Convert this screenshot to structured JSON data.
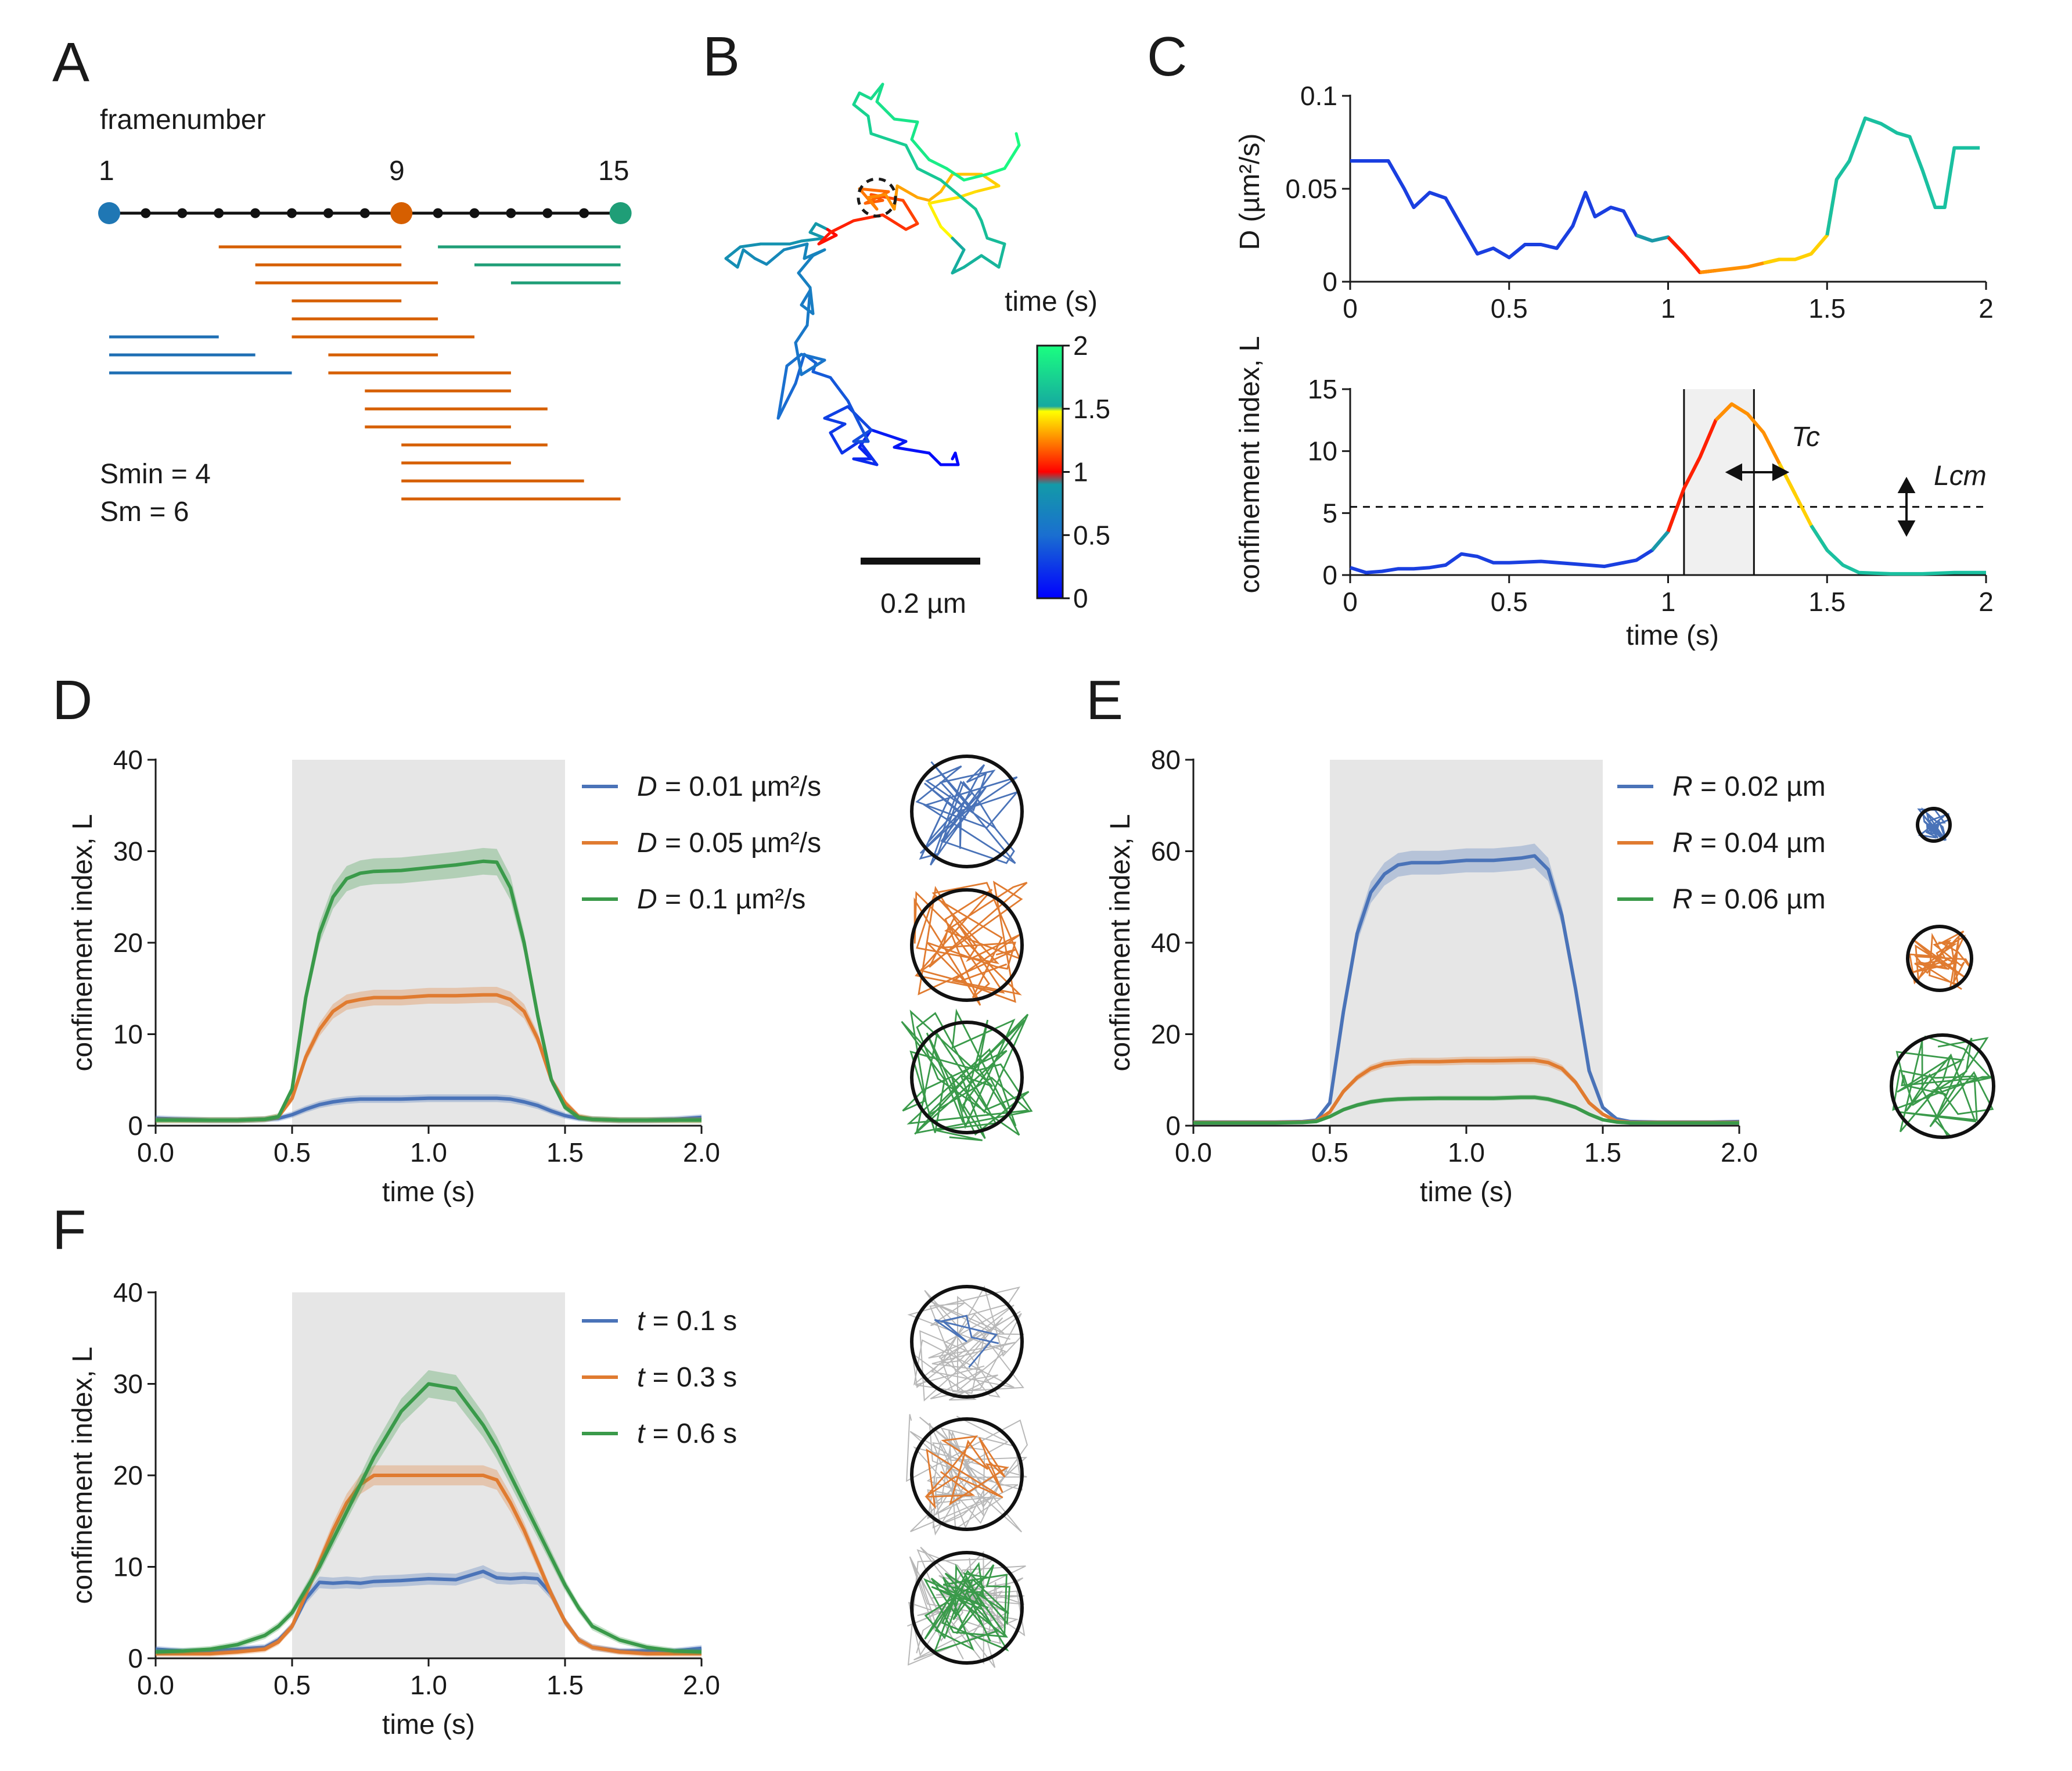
{
  "panels": {
    "A": {
      "letter": "A",
      "title": "framenumber",
      "frame_labels": [
        "1",
        "9",
        "15"
      ],
      "frames": 15,
      "highlight_frames": [
        1,
        9,
        15
      ],
      "frame_colors": {
        "1": "#1f77b4",
        "9": "#d65f00",
        "15": "#1f9e77"
      },
      "windows": {
        "orange": [
          [
            4,
            9
          ],
          [
            5,
            9
          ],
          [
            5,
            10
          ],
          [
            6,
            9
          ],
          [
            6,
            10
          ],
          [
            6,
            11
          ],
          [
            7,
            10
          ],
          [
            7,
            12
          ],
          [
            8,
            12
          ],
          [
            8,
            13
          ],
          [
            8,
            12
          ],
          [
            9,
            13
          ],
          [
            9,
            12
          ],
          [
            9,
            14
          ],
          [
            9,
            15
          ]
        ],
        "teal": [
          [
            10,
            15
          ],
          [
            11,
            15
          ],
          [
            12,
            15
          ]
        ],
        "blue": [
          [
            1,
            4
          ],
          [
            1,
            5
          ],
          [
            1,
            6
          ]
        ]
      },
      "smin_text": "Smin = 4",
      "sm_text": "Sm = 6"
    },
    "B": {
      "letter": "B",
      "colorbar_title": "time (s)",
      "colorbar_ticks": [
        "0",
        "0.5",
        "1",
        "1.5",
        "2"
      ],
      "scalebar_label": "0.2 µm"
    },
    "C": {
      "letter": "C",
      "top_ylabel": "D (µm²/s)",
      "top_yticks": [
        "0",
        "0.05",
        "0.1"
      ],
      "bottom_ylabel": "confinement index, L",
      "bottom_yticks": [
        "0",
        "5",
        "10",
        "15"
      ],
      "xticks": [
        "0",
        "0.5",
        "1",
        "1.5",
        "2"
      ],
      "xlabel": "time (s)",
      "tc_label": "Tc",
      "lcm_label": "Lcm"
    },
    "D": {
      "letter": "D"
    },
    "E": {
      "letter": "E"
    },
    "F": {
      "letter": "F"
    }
  },
  "chart_data": [
    {
      "panel": "C-top",
      "type": "line",
      "xlabel": "",
      "ylabel": "D (µm²/s)",
      "xlim": [
        0,
        2
      ],
      "ylim": [
        0,
        0.1
      ],
      "x": [
        0,
        0.05,
        0.12,
        0.17,
        0.2,
        0.25,
        0.3,
        0.35,
        0.4,
        0.45,
        0.5,
        0.55,
        0.6,
        0.65,
        0.7,
        0.74,
        0.77,
        0.82,
        0.86,
        0.9,
        0.95,
        1.0,
        1.05,
        1.1,
        1.15,
        1.2,
        1.25,
        1.3,
        1.35,
        1.4,
        1.45,
        1.5,
        1.53,
        1.57,
        1.62,
        1.67,
        1.72,
        1.76,
        1.8,
        1.84,
        1.87,
        1.9,
        1.95,
        1.98
      ],
      "y": [
        0.065,
        0.065,
        0.065,
        0.05,
        0.04,
        0.048,
        0.045,
        0.03,
        0.015,
        0.018,
        0.013,
        0.02,
        0.02,
        0.018,
        0.03,
        0.048,
        0.035,
        0.04,
        0.038,
        0.025,
        0.022,
        0.024,
        0.015,
        0.005,
        0.006,
        0.007,
        0.008,
        0.01,
        0.012,
        0.012,
        0.015,
        0.025,
        0.055,
        0.065,
        0.088,
        0.085,
        0.08,
        0.078,
        0.06,
        0.04,
        0.04,
        0.072,
        0.072,
        0.072
      ]
    },
    {
      "panel": "C-bottom",
      "type": "line",
      "xlabel": "time (s)",
      "ylabel": "confinement index, L",
      "xlim": [
        0,
        2
      ],
      "ylim": [
        0,
        15
      ],
      "x": [
        0,
        0.05,
        0.1,
        0.15,
        0.2,
        0.25,
        0.3,
        0.35,
        0.4,
        0.45,
        0.5,
        0.6,
        0.7,
        0.8,
        0.9,
        0.95,
        1.0,
        1.05,
        1.1,
        1.15,
        1.2,
        1.25,
        1.3,
        1.35,
        1.4,
        1.45,
        1.5,
        1.55,
        1.6,
        1.7,
        1.8,
        1.9,
        2.0
      ],
      "y": [
        0.6,
        0.2,
        0.3,
        0.5,
        0.5,
        0.6,
        0.8,
        1.7,
        1.5,
        1.0,
        1.0,
        1.1,
        0.9,
        0.7,
        1.2,
        2.0,
        3.5,
        7.0,
        9.5,
        12.5,
        13.8,
        13.0,
        11.5,
        9.0,
        6.5,
        4.0,
        2.0,
        0.8,
        0.2,
        0.1,
        0.1,
        0.2,
        0.2
      ],
      "confined_interval": [
        1.05,
        1.27
      ],
      "threshold": 5.5
    },
    {
      "panel": "D",
      "type": "line",
      "xlabel": "time (s)",
      "ylabel": "confinement index, L",
      "xlim": [
        0,
        2
      ],
      "ylim": [
        0,
        40
      ],
      "xticks": [
        "0.0",
        "0.5",
        "1.0",
        "1.5",
        "2.0"
      ],
      "yticks": [
        "0",
        "10",
        "20",
        "30",
        "40"
      ],
      "shaded_interval": [
        0.5,
        1.5
      ],
      "x": [
        0,
        0.1,
        0.2,
        0.3,
        0.4,
        0.45,
        0.5,
        0.55,
        0.6,
        0.65,
        0.7,
        0.75,
        0.8,
        0.9,
        1.0,
        1.1,
        1.2,
        1.25,
        1.3,
        1.35,
        1.4,
        1.45,
        1.5,
        1.55,
        1.6,
        1.7,
        1.8,
        1.9,
        2.0
      ],
      "series": [
        {
          "name": "D = 0.01 µm²/s",
          "label_var": "D",
          "label_rest": " = 0.01 µm²/s",
          "color": "#4a73b8",
          "values": [
            0.8,
            0.7,
            0.6,
            0.6,
            0.7,
            0.8,
            1.2,
            1.8,
            2.3,
            2.6,
            2.8,
            2.9,
            2.9,
            2.9,
            3.0,
            3.0,
            3.0,
            3.0,
            2.9,
            2.6,
            2.2,
            1.6,
            1.1,
            0.8,
            0.7,
            0.6,
            0.6,
            0.7,
            0.9
          ]
        },
        {
          "name": "D = 0.05 µm²/s",
          "label_var": "D",
          "label_rest": " = 0.05 µm²/s",
          "color": "#e07b30",
          "values": [
            0.6,
            0.6,
            0.6,
            0.6,
            0.7,
            1.0,
            3.0,
            7.5,
            10.5,
            12.5,
            13.5,
            13.8,
            14.0,
            14.0,
            14.2,
            14.2,
            14.3,
            14.3,
            13.8,
            12.5,
            9.5,
            5.0,
            2.5,
            1.0,
            0.7,
            0.6,
            0.6,
            0.6,
            0.6
          ]
        },
        {
          "name": "D = 0.1 µm²/s",
          "label_var": "D",
          "label_rest": " = 0.1 µm²/s",
          "color": "#3a9a4a",
          "values": [
            0.6,
            0.6,
            0.6,
            0.6,
            0.7,
            1.0,
            4.0,
            14.0,
            21.0,
            25.0,
            27.0,
            27.6,
            27.8,
            27.9,
            28.2,
            28.5,
            28.9,
            28.8,
            26.0,
            20.0,
            12.0,
            5.0,
            2.0,
            0.9,
            0.7,
            0.6,
            0.6,
            0.6,
            0.6
          ]
        }
      ]
    },
    {
      "panel": "E",
      "type": "line",
      "xlabel": "time (s)",
      "ylabel": "confinement index, L",
      "xlim": [
        0,
        2
      ],
      "ylim": [
        0,
        80
      ],
      "xticks": [
        "0.0",
        "0.5",
        "1.0",
        "1.5",
        "2.0"
      ],
      "yticks": [
        "0",
        "20",
        "40",
        "60",
        "80"
      ],
      "shaded_interval": [
        0.5,
        1.5
      ],
      "x": [
        0,
        0.1,
        0.2,
        0.3,
        0.4,
        0.45,
        0.5,
        0.55,
        0.6,
        0.65,
        0.7,
        0.75,
        0.8,
        0.9,
        1.0,
        1.1,
        1.2,
        1.25,
        1.3,
        1.35,
        1.4,
        1.45,
        1.5,
        1.55,
        1.6,
        1.7,
        1.8,
        1.9,
        2.0
      ],
      "series": [
        {
          "name": "R = 0.02 µm",
          "label_var": "R",
          "label_rest": " = 0.02 µm",
          "color": "#4a73b8",
          "values": [
            0.8,
            0.8,
            0.8,
            0.8,
            0.9,
            1.2,
            5.0,
            25.0,
            42.0,
            51.0,
            55.0,
            57.0,
            57.5,
            57.5,
            58.0,
            58.0,
            58.5,
            59.0,
            56.0,
            46.0,
            30.0,
            12.0,
            4.0,
            1.5,
            0.9,
            0.8,
            0.8,
            0.8,
            0.9
          ]
        },
        {
          "name": "R = 0.04 µm",
          "label_var": "R",
          "label_rest": " = 0.04 µm",
          "color": "#e07b30",
          "values": [
            0.7,
            0.7,
            0.7,
            0.7,
            0.8,
            1.0,
            3.0,
            7.5,
            10.5,
            12.5,
            13.5,
            13.8,
            14.0,
            14.0,
            14.2,
            14.2,
            14.3,
            14.3,
            13.8,
            12.5,
            9.5,
            5.0,
            2.5,
            1.0,
            0.7,
            0.7,
            0.7,
            0.7,
            0.7
          ]
        },
        {
          "name": "R = 0.06 µm",
          "label_var": "R",
          "label_rest": " = 0.06 µm",
          "color": "#3a9a4a",
          "values": [
            0.6,
            0.6,
            0.6,
            0.6,
            0.7,
            0.9,
            2.0,
            3.5,
            4.5,
            5.2,
            5.6,
            5.8,
            5.9,
            6.0,
            6.0,
            6.0,
            6.2,
            6.2,
            5.8,
            5.0,
            4.0,
            2.5,
            1.3,
            0.8,
            0.6,
            0.6,
            0.6,
            0.6,
            0.6
          ]
        }
      ]
    },
    {
      "panel": "F",
      "type": "line",
      "xlabel": "time (s)",
      "ylabel": "confinement index, L",
      "xlim": [
        0,
        2
      ],
      "ylim": [
        0,
        40
      ],
      "xticks": [
        "0.0",
        "0.5",
        "1.0",
        "1.5",
        "2.0"
      ],
      "yticks": [
        "0",
        "10",
        "20",
        "30",
        "40"
      ],
      "shaded_interval": [
        0.5,
        1.5
      ],
      "x": [
        0,
        0.1,
        0.2,
        0.3,
        0.4,
        0.45,
        0.5,
        0.55,
        0.6,
        0.65,
        0.7,
        0.75,
        0.8,
        0.9,
        1.0,
        1.1,
        1.2,
        1.25,
        1.3,
        1.35,
        1.4,
        1.45,
        1.5,
        1.55,
        1.6,
        1.7,
        1.8,
        1.9,
        2.0
      ],
      "series": [
        {
          "name": "t = 0.1 s",
          "label_var": "t",
          "label_rest": " = 0.1 s",
          "color": "#4a73b8",
          "values": [
            1.0,
            0.8,
            0.8,
            1.0,
            1.2,
            2.0,
            3.5,
            6.5,
            8.3,
            8.2,
            8.3,
            8.2,
            8.4,
            8.5,
            8.7,
            8.6,
            9.5,
            8.8,
            8.7,
            8.8,
            8.7,
            7.0,
            4.0,
            2.0,
            1.2,
            0.8,
            0.8,
            0.8,
            1.1
          ]
        },
        {
          "name": "t = 0.3 s",
          "label_var": "t",
          "label_rest": " = 0.3 s",
          "color": "#e07b30",
          "values": [
            0.5,
            0.5,
            0.5,
            0.7,
            1.0,
            1.8,
            3.5,
            7.0,
            10.5,
            14.0,
            17.0,
            19.0,
            20.0,
            20.0,
            20.0,
            20.0,
            20.0,
            19.5,
            17.0,
            14.0,
            10.5,
            7.0,
            4.0,
            2.0,
            1.2,
            0.7,
            0.5,
            0.5,
            0.5
          ]
        },
        {
          "name": "t = 0.6 s",
          "label_var": "t",
          "label_rest": " = 0.6 s",
          "color": "#3a9a4a",
          "values": [
            0.7,
            0.8,
            1.0,
            1.5,
            2.5,
            3.5,
            5.0,
            7.5,
            10.0,
            13.0,
            16.0,
            19.0,
            22.0,
            27.0,
            30.0,
            29.5,
            25.5,
            23.0,
            20.0,
            17.0,
            14.0,
            11.0,
            8.0,
            5.5,
            3.5,
            2.0,
            1.2,
            0.8,
            0.7
          ]
        }
      ]
    }
  ]
}
